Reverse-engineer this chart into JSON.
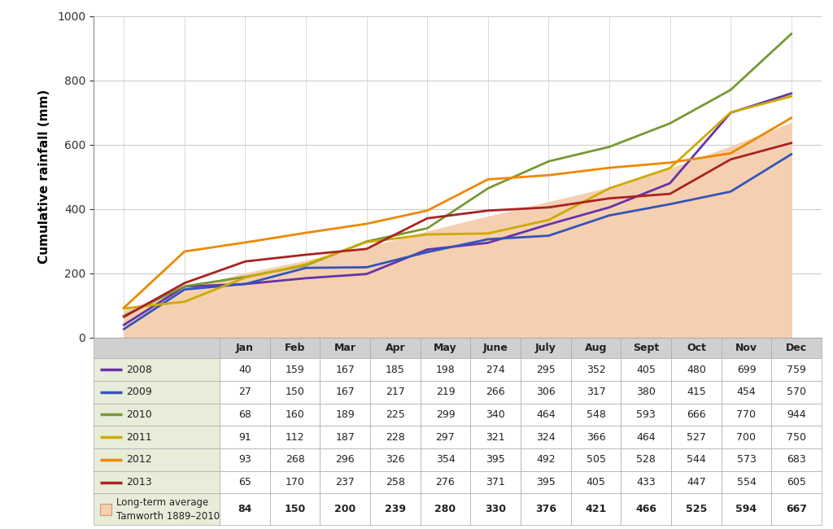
{
  "months": [
    "Jan",
    "Feb",
    "Mar",
    "Apr",
    "May",
    "June",
    "July",
    "Aug",
    "Sept",
    "Oct",
    "Nov",
    "Dec"
  ],
  "series_order": [
    "2008",
    "2009",
    "2010",
    "2011",
    "2012",
    "2013"
  ],
  "series": {
    "2008": {
      "values": [
        40,
        159,
        167,
        185,
        198,
        274,
        295,
        352,
        405,
        480,
        699,
        759
      ],
      "color": "#6633aa"
    },
    "2009": {
      "values": [
        27,
        150,
        167,
        217,
        219,
        266,
        306,
        317,
        380,
        415,
        454,
        570
      ],
      "color": "#3355bb"
    },
    "2010": {
      "values": [
        68,
        160,
        189,
        225,
        299,
        340,
        464,
        548,
        593,
        666,
        770,
        944
      ],
      "color": "#779933"
    },
    "2011": {
      "values": [
        91,
        112,
        187,
        228,
        297,
        321,
        324,
        366,
        464,
        527,
        700,
        750
      ],
      "color": "#ccaa00"
    },
    "2012": {
      "values": [
        93,
        268,
        296,
        326,
        354,
        395,
        492,
        505,
        528,
        544,
        573,
        683
      ],
      "color": "#ee8800"
    },
    "2013": {
      "values": [
        65,
        170,
        237,
        258,
        276,
        371,
        395,
        405,
        433,
        447,
        554,
        605
      ],
      "color": "#aa2222"
    }
  },
  "longterm": [
    84,
    150,
    200,
    239,
    280,
    330,
    376,
    421,
    466,
    525,
    594,
    667
  ],
  "longterm_fill_color": "#f5d0b0",
  "longterm_label": "Long-term average\nTamworth 1889–2010",
  "ylabel": "Cumulative rainfall (mm)",
  "ylim": [
    0,
    1000
  ],
  "yticks": [
    0,
    200,
    400,
    600,
    800,
    1000
  ],
  "linewidth": 2.0,
  "bg_color": "#ffffff",
  "table_label_bg": "#e8edda",
  "table_header_bg": "#d0d0d0",
  "table_data_bg": "#ffffff",
  "table_border_color": "#aaaaaa"
}
